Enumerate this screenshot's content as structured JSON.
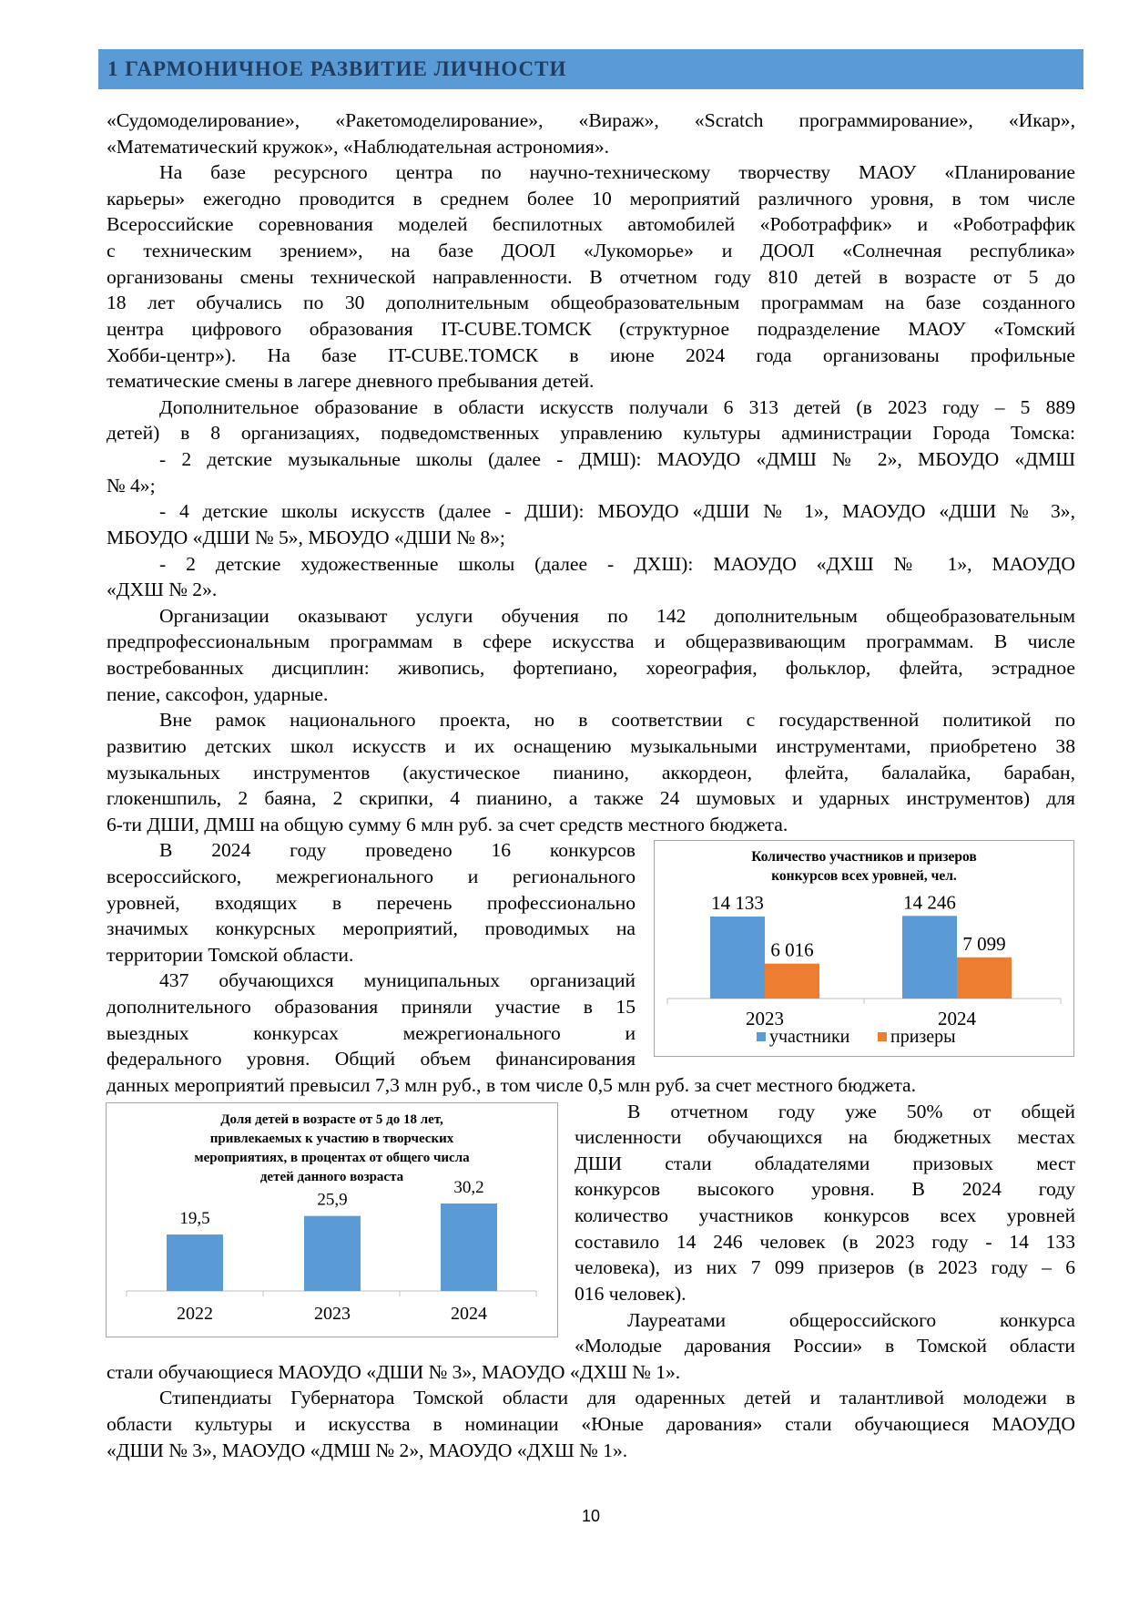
{
  "header": {
    "title": "1 ГАРМОНИЧНОЕ РАЗВИТИЕ ЛИЧНОСТИ",
    "color": "#5b9bd5"
  },
  "paragraphs": [
    {
      "col": "full",
      "indent": false,
      "lines": [
        "«Судомоделирование», «Ракетомоделирование», «Вираж», «Scratch программирование», «Икар»,",
        "«Математический кружок», «Наблюдательная астрономия»."
      ]
    },
    {
      "col": "full",
      "indent": true,
      "lines": [
        "На базе ресурсного центра по научно-техническому творчеству МАОУ «Планирование",
        "карьеры» ежегодно проводится в среднем более 10 мероприятий различного уровня, в том числе",
        "Всероссийские соревнования моделей беспилотных автомобилей «Роботраффик» и «Роботраффик",
        "с техническим зрением», на базе ДООЛ «Лукоморье» и ДООЛ «Солнечная республика»",
        "организованы смены технической направленности. В отчетном году 810 детей в возрасте от 5 до",
        "18 лет обучались по 30 дополнительным общеобразовательным программам на базе созданного",
        "центра цифрового образования IT-CUBE.ТОМСК (структурное подразделение МАОУ «Томский",
        "Хобби-центр»). На базе IT-CUBE.ТОМСК в июне 2024 года организованы профильные",
        "тематические смены в лагере дневного пребывания детей."
      ]
    },
    {
      "col": "full",
      "indent": true,
      "lines": [
        "Дополнительное образование в области искусств получали 6 313 детей (в 2023 году – 5 889",
        "детей) в 8 организациях, подведомственных управлению культуры администрации Города Томска:"
      ],
      "justify_last": true
    },
    {
      "col": "full",
      "indent": true,
      "lines": [
        "- 2 детские музыкальные школы (далее - ДМШ): МАОУДО «ДМШ № 2», МБОУДО «ДМШ",
        "№ 4»;"
      ]
    },
    {
      "col": "full",
      "indent": true,
      "lines": [
        "- 4 детские школы искусств (далее - ДШИ): МБОУДО «ДШИ № 1», МАОУДО «ДШИ № 3»,",
        "МБОУДО «ДШИ № 5», МБОУДО «ДШИ № 8»;"
      ]
    },
    {
      "col": "full",
      "indent": true,
      "lines": [
        "- 2 детские художественные школы (далее - ДХШ): МАОУДО «ДХШ № 1», МАОУДО",
        "«ДХШ № 2»."
      ]
    },
    {
      "col": "full",
      "indent": true,
      "lines": [
        "Организации оказывают услуги обучения по 142 дополнительным общеобразовательным",
        "предпрофессиональным программам в сфере искусства и общеразвивающим программам. В числе",
        "востребованных дисциплин: живопись, фортепиано, хореография, фольклор, флейта, эстрадное",
        "пение, саксофон, ударные."
      ]
    },
    {
      "col": "full",
      "indent": true,
      "lines": [
        "Вне рамок национального проекта, но в соответствии с государственной политикой по",
        "развитию детских школ искусств и их оснащению музыкальными инструментами, приобретено 38",
        "музыкальных инструментов (акустическое пианино, аккордеон, флейта, балалайка, барабан,",
        "глокеншпиль, 2 баяна, 2 скрипки, 4 пианино, а также 24 шумовых и ударных инструментов) для",
        "6-ти ДШИ, ДМШ на общую сумму 6 млн руб. за счет средств местного бюджета."
      ]
    },
    {
      "col": "left",
      "indent": true,
      "lines": [
        "В 2024 году проведено 16 конкурсов",
        "всероссийского, межрегионального и регионального",
        "уровней, входящих в перечень профессионально",
        "значимых конкурсных мероприятий, проводимых на",
        "территории Томской области."
      ]
    },
    {
      "col": "left",
      "indent": true,
      "lines": [
        "437 обучающихся муниципальных организаций",
        "дополнительного образования приняли участие в 15",
        "выездных конкурсах межрегионального и",
        "федерального уровня. Общий объем финансирования"
      ],
      "justify_last": true
    },
    {
      "col": "full",
      "indent": false,
      "lines": [
        "данных мероприятий превысил 7,3 млн руб., в том числе 0,5 млн руб. за счет местного бюджета."
      ]
    },
    {
      "col": "right",
      "indent": true,
      "lines": [
        "В отчетном году уже 50% от общей",
        "численности обучающихся на бюджетных местах",
        "ДШИ стали обладателями призовых мест",
        "конкурсов высокого уровня. В 2024 году",
        "количество участников конкурсов всех уровней",
        "составило 14 246 человек (в 2023 году - 14 133",
        "человека), из них 7 099 призеров (в 2023 году – 6",
        "016 человек)."
      ]
    },
    {
      "col": "right",
      "indent": true,
      "lines": [
        "Лауреатами общероссийского конкурса",
        "«Молодые дарования России» в Томской области"
      ],
      "justify_last": true
    },
    {
      "col": "full",
      "indent": false,
      "lines": [
        "стали обучающиеся МАОУДО «ДШИ № 3», МАОУДО «ДХШ № 1»."
      ]
    },
    {
      "col": "full",
      "indent": true,
      "lines": [
        "Стипендиаты Губернатора Томской области для одаренных детей и талантливой молодежи в",
        "области культуры и искусства в номинации «Юные дарования» стали обучающиеся МАОУДО",
        "«ДШИ № 3», МАОУДО «ДМШ № 2», МАОУДО «ДХШ № 1»."
      ]
    }
  ],
  "chart_data": [
    {
      "type": "bar",
      "title": "Количество участников и призеров конкурсов всех уровней, чел.",
      "title_lines": [
        "Количество участников и призеров",
        "конкурсов всех уровней, чел."
      ],
      "categories": [
        "2023",
        "2024"
      ],
      "series": [
        {
          "name": "участники",
          "values": [
            14133,
            14246
          ],
          "labels": [
            "14 133",
            "14 246"
          ],
          "color": "#5b9bd5"
        },
        {
          "name": "призеры",
          "values": [
            6016,
            7099
          ],
          "labels": [
            "6 016",
            "7 099"
          ],
          "color": "#ed7d31"
        }
      ],
      "legend": "bottom",
      "grid": false
    },
    {
      "type": "bar",
      "title": "Доля детей в возрасте от 5 до 18 лет, привлекаемых к участию в творческих мероприятиях, в процентах от общего числа детей данного возраста",
      "title_lines": [
        "Доля детей в возрасте от 5 до 18 лет,",
        "привлекаемых к участию в творческих",
        "мероприятиях, в процентах от общего числа",
        "детей данного возраста"
      ],
      "categories": [
        "2022",
        "2023",
        "2024"
      ],
      "values": [
        19.5,
        25.9,
        30.2
      ],
      "labels": [
        "19,5",
        "25,9",
        "30,2"
      ],
      "color": "#5b9bd5",
      "grid": false
    }
  ],
  "page_number": "10"
}
